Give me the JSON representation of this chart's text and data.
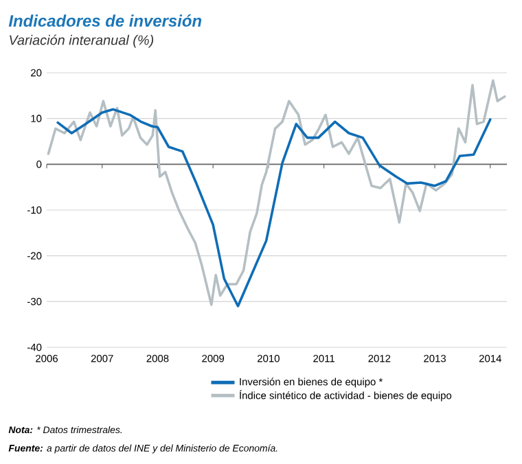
{
  "chart_data": {
    "type": "line",
    "title": "Indicadores de inversión",
    "subtitle": "Variación interanual (%)",
    "xlim": [
      2006,
      2014.3
    ],
    "xticks": [
      2006,
      2007,
      2008,
      2009,
      2010,
      2011,
      2012,
      2013,
      2014
    ],
    "ylim": [
      -40,
      20
    ],
    "yticks": [
      -40,
      -30,
      -20,
      -10,
      0,
      10,
      20
    ],
    "grid": "y",
    "legend": "bottom",
    "ref_lines": [
      {
        "axis": "y",
        "value": 0,
        "color": "#666666"
      }
    ],
    "series": [
      {
        "name": "Inversión en bienes de equipo *",
        "color": "#0f6db5",
        "x": [
          2006.2,
          2006.45,
          2006.7,
          2007.0,
          2007.2,
          2007.5,
          2007.7,
          2007.9,
          2008.0,
          2008.2,
          2008.45,
          2008.7,
          2009.0,
          2009.2,
          2009.45,
          2009.7,
          2009.96,
          2010.25,
          2010.5,
          2010.7,
          2010.9,
          2011.2,
          2011.45,
          2011.7,
          2012.0,
          2012.3,
          2012.5,
          2012.75,
          2013.0,
          2013.2,
          2013.45,
          2013.7,
          2014.0
        ],
        "values": [
          9.1,
          6.8,
          8.8,
          11.3,
          12.0,
          10.8,
          9.3,
          8.3,
          8.1,
          3.8,
          2.8,
          -4.2,
          -13.2,
          -25,
          -31,
          -24,
          -16.7,
          0.3,
          8.8,
          5.8,
          5.8,
          9.3,
          6.8,
          5.8,
          -0.2,
          -2.7,
          -4.2,
          -4.0,
          -4.7,
          -3.7,
          1.8,
          2.1,
          9.8
        ]
      },
      {
        "name": "Índice sintético de actividad - bienes de equipo",
        "color": "#b5bfc3",
        "x": [
          2006.03,
          2006.16,
          2006.32,
          2006.49,
          2006.61,
          2006.78,
          2006.9,
          2007.02,
          2007.15,
          2007.27,
          2007.36,
          2007.48,
          2007.56,
          2007.69,
          2007.81,
          2007.91,
          2007.96,
          2008.04,
          2008.14,
          2008.26,
          2008.39,
          2008.55,
          2008.68,
          2008.8,
          2008.97,
          2009.05,
          2009.13,
          2009.26,
          2009.42,
          2009.55,
          2009.67,
          2009.79,
          2009.88,
          2009.96,
          2010.12,
          2010.25,
          2010.37,
          2010.54,
          2010.66,
          2010.79,
          2010.91,
          2011.03,
          2011.16,
          2011.32,
          2011.45,
          2011.61,
          2011.74,
          2011.86,
          2012.02,
          2012.19,
          2012.36,
          2012.48,
          2012.6,
          2012.73,
          2012.85,
          2013.02,
          2013.18,
          2013.31,
          2013.43,
          2013.55,
          2013.68,
          2013.76,
          2013.88,
          2014.05,
          2014.13,
          2014.26
        ],
        "values": [
          2.3,
          7.8,
          6.8,
          9.3,
          5.3,
          11.3,
          8.3,
          13.8,
          8.3,
          12.3,
          6.3,
          7.8,
          10.3,
          5.8,
          4.3,
          6.3,
          11.8,
          -2.7,
          -1.7,
          -6.2,
          -10.2,
          -14.2,
          -17.2,
          -22.2,
          -30.7,
          -24.2,
          -28.7,
          -26.2,
          -26.2,
          -23.2,
          -14.7,
          -10.7,
          -4.5,
          -1.7,
          7.8,
          9.3,
          13.8,
          10.8,
          4.3,
          5.3,
          7.8,
          10.8,
          3.8,
          4.8,
          2.3,
          5.8,
          0.3,
          -4.7,
          -5.2,
          -3.2,
          -12.7,
          -4.2,
          -6.2,
          -10.2,
          -4.2,
          -5.7,
          -4.2,
          -2.2,
          7.8,
          4.8,
          17.3,
          8.8,
          9.3,
          18.3,
          13.8,
          14.8
        ]
      }
    ],
    "annotations": [
      "**Nota:** * Datos trimestrales.",
      "**Fuente:** a partir de datos del INE y del Ministerio de Economía."
    ]
  }
}
